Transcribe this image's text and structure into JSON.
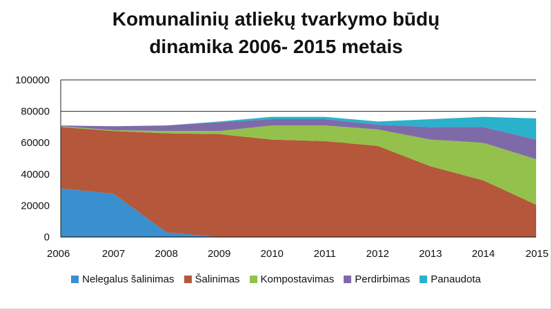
{
  "chart_data": {
    "type": "area",
    "stacked": true,
    "title_lines": [
      "Komunalinių atliekų tvarkymo būdų",
      "dinamika 2006- 2015 metais"
    ],
    "x": [
      "2006",
      "2007",
      "2008",
      "2009",
      "2010",
      "2011",
      "2012",
      "2013",
      "2014",
      "2015"
    ],
    "ylim": [
      0,
      100000
    ],
    "yticks": [
      "0",
      "20000",
      "40000",
      "60000",
      "80000",
      "100000"
    ],
    "ytick_values": [
      0,
      20000,
      40000,
      60000,
      80000,
      100000
    ],
    "grid": true,
    "legend_position": "bottom",
    "series": [
      {
        "name": "Nelegalus šalinimas",
        "color": "#3a8fcf",
        "values": [
          31000,
          27500,
          3000,
          0,
          0,
          0,
          0,
          0,
          0,
          0
        ]
      },
      {
        "name": "Šalinimas",
        "color": "#b5573a",
        "values": [
          39000,
          40000,
          63000,
          65500,
          62000,
          61000,
          58000,
          45000,
          36000,
          20500
        ]
      },
      {
        "name": "Kompostavimas",
        "color": "#93c14c",
        "values": [
          500,
          500,
          1500,
          2000,
          9000,
          10000,
          10500,
          17000,
          24000,
          29000
        ]
      },
      {
        "name": "Perdirbimas",
        "color": "#7f6aa9",
        "values": [
          500,
          2500,
          3500,
          5500,
          4000,
          4000,
          3000,
          8000,
          10000,
          12500
        ]
      },
      {
        "name": "Panaudota",
        "color": "#2ab1cc",
        "values": [
          0,
          0,
          0,
          500,
          1500,
          1500,
          2000,
          5000,
          6500,
          13500
        ]
      }
    ]
  }
}
